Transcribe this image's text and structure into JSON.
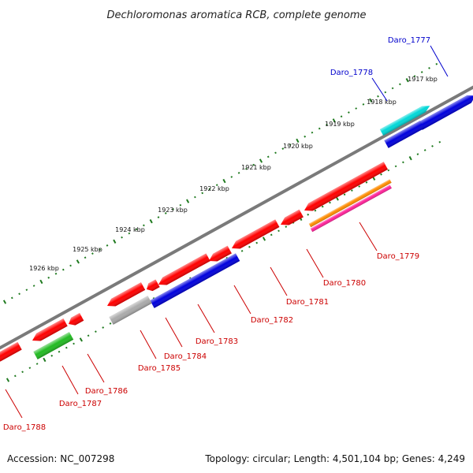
{
  "title": "Dechloromonas aromatica RCB, complete genome",
  "footer": {
    "accession": "Accession: NC_007298",
    "summary": "Topology: circular; Length: 4,501,104 bp; Genes: 4,249"
  },
  "colors": {
    "forward_default": "#ff0000",
    "backbone": "#7a7a7a",
    "tick": "#1f7a1f",
    "label_forward": "#0000cc",
    "label_reverse": "#cc0000"
  },
  "kbp_labels": [
    "1917 kbp",
    "1918 kbp",
    "1919 kbp",
    "1920 kbp",
    "1921 kbp",
    "1922 kbp",
    "1923 kbp",
    "1924 kbp",
    "1925 kbp",
    "1926 kbp"
  ],
  "genes": [
    {
      "id": "Daro_1777",
      "strand": "+",
      "color": "#00d8d8",
      "label_color": "#0000cc"
    },
    {
      "id": "Daro_1778",
      "strand": "+",
      "color": "#0000dd",
      "label_color": "#0000cc"
    },
    {
      "id": "Daro_1779",
      "strand": "-",
      "color": "#ff0000",
      "label_color": "#cc0000"
    },
    {
      "id": "Daro_1780",
      "strand": "-",
      "color": "#ff0000",
      "label_color": "#cc0000"
    },
    {
      "id": "Daro_1781",
      "strand": "-",
      "color": "#ff0000",
      "label_color": "#cc0000"
    },
    {
      "id": "Daro_1782",
      "strand": "-",
      "color": "#ff0000",
      "label_color": "#cc0000"
    },
    {
      "id": "Daro_1783",
      "strand": "-",
      "color": "#0000dd",
      "label_color": "#cc0000"
    },
    {
      "id": "Daro_1784",
      "strand": "-",
      "color": "#ff0000",
      "label_color": "#cc0000"
    },
    {
      "id": "Daro_1785",
      "strand": "-",
      "color": "#aaaaaa",
      "label_color": "#cc0000"
    },
    {
      "id": "Daro_1786",
      "strand": "-",
      "color": "#ff0000",
      "label_color": "#cc0000"
    },
    {
      "id": "Daro_1787",
      "strand": "-",
      "color": "#22bb22",
      "label_color": "#cc0000"
    },
    {
      "id": "Daro_1788",
      "strand": "-",
      "color": "#ff0000",
      "label_color": "#cc0000"
    }
  ],
  "extra_features": [
    {
      "name": "orange-feature",
      "color": "#ff8c00"
    },
    {
      "name": "magenta-feature",
      "color": "#ff2299"
    }
  ]
}
